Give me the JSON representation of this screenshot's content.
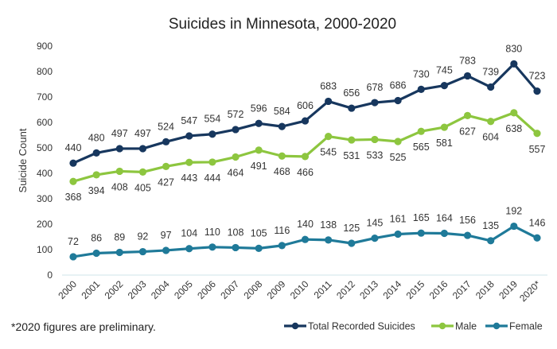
{
  "chart_data": {
    "type": "line",
    "title": "Suicides in Minnesota, 2000-2020",
    "xlabel": "",
    "ylabel": "Suicide Count",
    "ylim": [
      0,
      900
    ],
    "yticks": [
      0,
      100,
      200,
      300,
      400,
      500,
      600,
      700,
      800,
      900
    ],
    "grid": false,
    "legend_position": "bottom-right",
    "categories": [
      "2000",
      "2001",
      "2002",
      "2003",
      "2004",
      "2005",
      "2006",
      "2007",
      "2008",
      "2009",
      "2010",
      "2011",
      "2012",
      "2013",
      "2014",
      "2015",
      "2016",
      "2017",
      "2018",
      "2019",
      "2020*"
    ],
    "series": [
      {
        "name": "Total Recorded Suicides",
        "color": "#17375e",
        "label_position": "above",
        "values": [
          440,
          480,
          497,
          497,
          524,
          547,
          554,
          572,
          596,
          584,
          606,
          683,
          656,
          678,
          686,
          730,
          745,
          783,
          739,
          830,
          723
        ]
      },
      {
        "name": "Male",
        "color": "#8dc63f",
        "label_position": "below",
        "values": [
          368,
          394,
          408,
          405,
          427,
          443,
          444,
          464,
          491,
          468,
          466,
          545,
          531,
          533,
          525,
          565,
          581,
          627,
          604,
          638,
          557
        ]
      },
      {
        "name": "Female",
        "color": "#1f7a99",
        "label_position": "above",
        "values": [
          72,
          86,
          89,
          92,
          97,
          104,
          110,
          108,
          105,
          116,
          140,
          138,
          125,
          145,
          161,
          165,
          164,
          156,
          135,
          192,
          146
        ]
      }
    ],
    "footnote": "*2020 figures are preliminary."
  }
}
